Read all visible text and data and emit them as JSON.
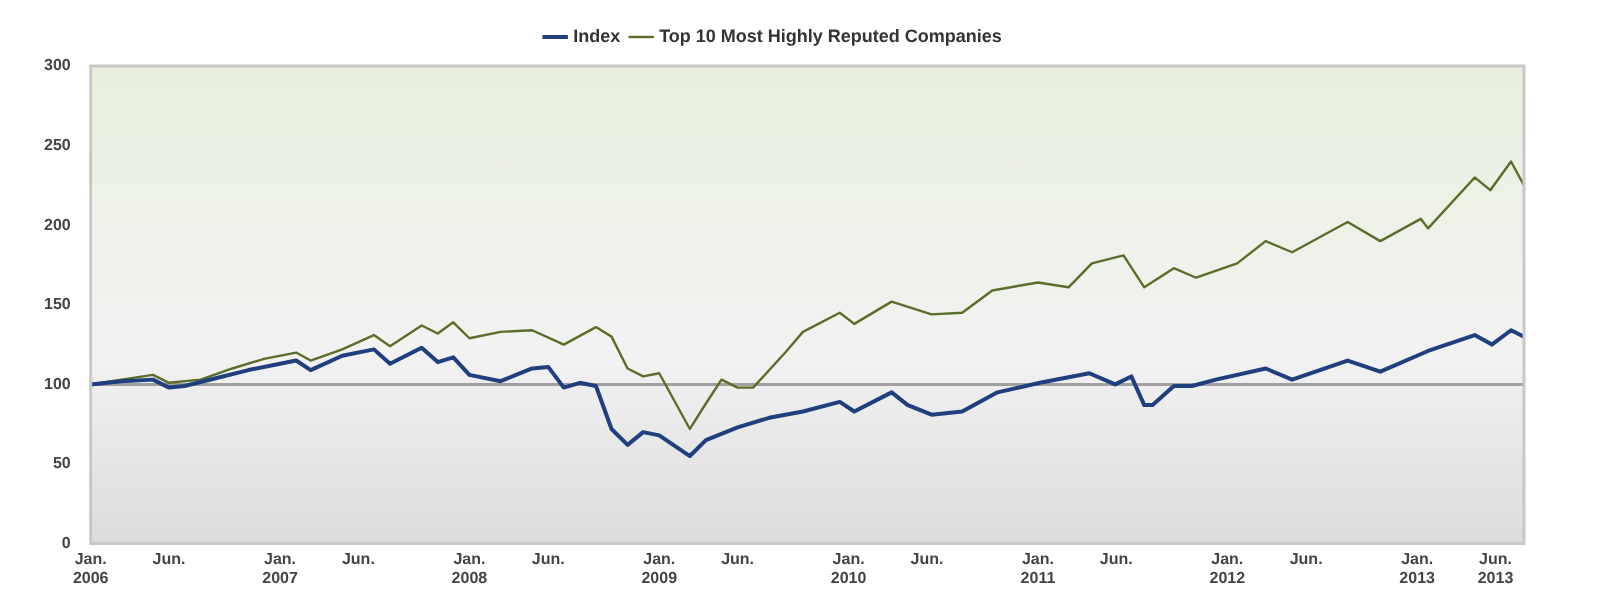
{
  "chart_data": {
    "type": "line",
    "legend": "top",
    "marker": "none",
    "line_style": "solid",
    "grid": false,
    "ylim": [
      0,
      300
    ],
    "yticks": [
      0,
      50,
      100,
      150,
      200,
      250,
      300
    ],
    "xlim": [
      "2006-01-01",
      "2013-07-26"
    ],
    "xticks": [
      {
        "value": "2006-01-01",
        "label": "Jan.\n2006"
      },
      {
        "value": "2006-06-01",
        "label": "Jun."
      },
      {
        "value": "2007-01-01",
        "label": "Jan.\n2007"
      },
      {
        "value": "2007-06-01",
        "label": "Jun."
      },
      {
        "value": "2008-01-01",
        "label": "Jan.\n2008"
      },
      {
        "value": "2008-06-01",
        "label": "Jun."
      },
      {
        "value": "2009-01-01",
        "label": "Jan.\n2009"
      },
      {
        "value": "2009-06-01",
        "label": "Jun."
      },
      {
        "value": "2010-01-01",
        "label": "Jan.\n2010"
      },
      {
        "value": "2010-06-01",
        "label": "Jun."
      },
      {
        "value": "2011-01-01",
        "label": "Jan.\n2011"
      },
      {
        "value": "2011-06-01",
        "label": "Jun."
      },
      {
        "value": "2012-01-01",
        "label": "Jan.\n2012"
      },
      {
        "value": "2012-06-01",
        "label": "Jun."
      },
      {
        "value": "2013-01-01",
        "label": "Jan.\n2013"
      },
      {
        "value": "2013-06-01",
        "label": "Jun.\n2013"
      }
    ],
    "ref_lines": [
      {
        "axis": "y",
        "value": 100,
        "color": "#a0a0a0"
      }
    ],
    "series": [
      {
        "name": "Index",
        "color": "#1f3f7f",
        "x": [
          "2006-01",
          "2006-03",
          "2006-05",
          "2006-06",
          "2006-07",
          "2006-09",
          "2006-11",
          "2007-01",
          "2007-02",
          "2007-03",
          "2007-05",
          "2007-07",
          "2007-08",
          "2007-10",
          "2007-11",
          "2007-12",
          "2008-01",
          "2008-03",
          "2008-05",
          "2008-06",
          "2008-07",
          "2008-08",
          "2008-09",
          "2008-10",
          "2008-11",
          "2008-12",
          "2009-01",
          "2009-03",
          "2009-04",
          "2009-06",
          "2009-08",
          "2009-10-05",
          "2009-12-15",
          "2010-01-12",
          "2010-03-25",
          "2010-04-25",
          "2010-06-10",
          "2010-08-08",
          "2010-10-15",
          "2011-01-05",
          "2011-04-10",
          "2011-05-30",
          "2011-06-30",
          "2011-07-25",
          "2011-08-10",
          "2011-09-20",
          "2011-10-25",
          "2011-12-10",
          "2012-03-15",
          "2012-05-05",
          "2012-08-20",
          "2012-10-22",
          "2013-01-22",
          "2013-04-22",
          "2013-05-25",
          "2013-07-01",
          "2013-07-26"
        ],
        "values": [
          100,
          102,
          103,
          98,
          99,
          104,
          109,
          113,
          115,
          109,
          118,
          122,
          113,
          123,
          114,
          117,
          106,
          102,
          110,
          111,
          98,
          101,
          99,
          72,
          62,
          70,
          68,
          55,
          65,
          73,
          79,
          83,
          89,
          83,
          95,
          87,
          81,
          83,
          95,
          101,
          107,
          100,
          105,
          87,
          87,
          99,
          99,
          103,
          110,
          103,
          115,
          108,
          121,
          131,
          125,
          134,
          130
        ]
      },
      {
        "name": "Top 10 Most Highly Reputed Companies",
        "color": "#5a6e2a",
        "x": [
          "2006-01",
          "2006-03",
          "2006-05",
          "2006-06",
          "2006-08",
          "2006-10",
          "2006-12",
          "2007-02",
          "2007-03",
          "2007-05",
          "2007-07",
          "2007-08",
          "2007-10",
          "2007-11",
          "2007-12",
          "2008-01",
          "2008-03",
          "2008-05",
          "2008-07",
          "2008-09",
          "2008-10",
          "2008-11",
          "2008-12",
          "2009-01",
          "2009-03",
          "2009-04",
          "2009-05",
          "2009-06",
          "2009-07",
          "2009-09",
          "2009-10-05",
          "2009-12-15",
          "2010-01-12",
          "2010-03-25",
          "2010-06-10",
          "2010-08-08",
          "2010-10-05",
          "2011-01-01",
          "2011-03-01",
          "2011-04-15",
          "2011-06-15",
          "2011-07-25",
          "2011-09-20",
          "2011-11-02",
          "2012-01-20",
          "2012-03-15",
          "2012-05-05",
          "2012-08-20",
          "2012-10-22",
          "2013-01-08",
          "2013-01-22",
          "2013-04-22",
          "2013-05-22",
          "2013-07-01",
          "2013-07-26"
        ],
        "values": [
          100,
          103,
          106,
          101,
          103,
          110,
          116,
          120,
          115,
          122,
          131,
          124,
          137,
          132,
          139,
          129,
          133,
          134,
          125,
          136,
          130,
          110,
          105,
          107,
          72,
          88,
          103,
          98,
          98,
          120,
          133,
          145,
          138,
          152,
          144,
          145,
          159,
          164,
          161,
          176,
          181,
          161,
          173,
          167,
          176,
          190,
          183,
          202,
          190,
          204,
          198,
          230,
          222,
          240,
          225
        ]
      }
    ]
  }
}
